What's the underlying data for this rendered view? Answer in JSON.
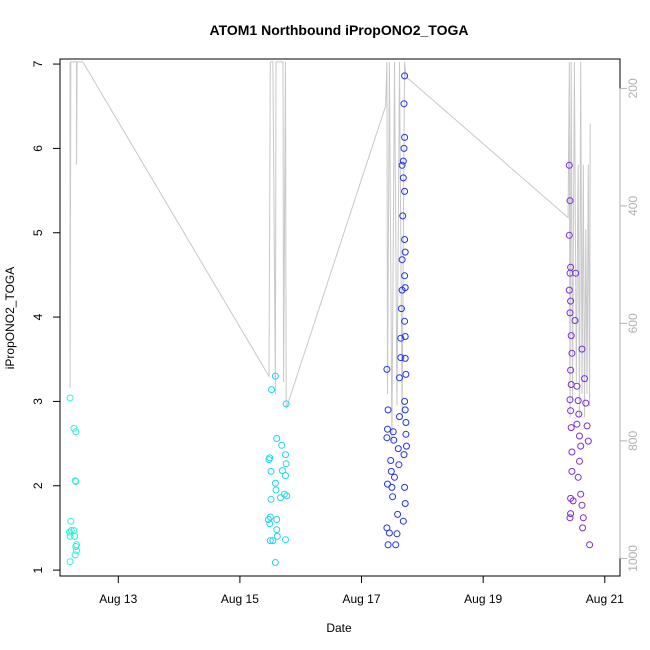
{
  "chart_data": {
    "type": "scatter",
    "title": "ATOM1 Northbound iPropONO2_TOGA",
    "xlabel": "Date",
    "ylabel": "iPropONO2_TOGA",
    "x_ticks": [
      {
        "date": "2016-08-13",
        "label": "Aug 13"
      },
      {
        "date": "2016-08-15",
        "label": "Aug 15"
      },
      {
        "date": "2016-08-17",
        "label": "Aug 17"
      },
      {
        "date": "2016-08-19",
        "label": "Aug 19"
      },
      {
        "date": "2016-08-21",
        "label": "Aug 21"
      }
    ],
    "xlim": [
      "2016-08-12 01:00",
      "2016-08-21 06:00"
    ],
    "ylim": [
      0.93,
      7.06
    ],
    "y_ticks": [
      "1",
      "2",
      "3",
      "4",
      "5",
      "6",
      "7"
    ],
    "y2_ticks": [
      "200",
      "400",
      "600",
      "800",
      "1000"
    ],
    "y2lim": [
      1030,
      150
    ],
    "grid": false,
    "legend": "none",
    "colors": {
      "Aug 12": "#2ff2d6",
      "Aug 15": "#22d6ee",
      "Aug 17": "#2233f0",
      "Aug 20": "#7a2ed6",
      "secondary_line": "#c8c8c8"
    },
    "series": [
      {
        "color_key": "Aug 12",
        "points": [
          [
            "2016-08-12 05:00",
            3.04
          ],
          [
            "2016-08-12 04:45",
            1.45
          ],
          [
            "2016-08-12 05:00",
            1.4
          ],
          [
            "2016-08-12 05:15",
            1.58
          ],
          [
            "2016-08-12 05:00",
            1.1
          ],
          [
            "2016-08-12 05:30",
            1.47
          ],
          [
            "2016-08-12 06:30",
            2.68
          ],
          [
            "2016-08-12 06:45",
            1.4
          ],
          [
            "2016-08-12 06:30",
            1.47
          ],
          [
            "2016-08-12 07:15",
            2.64
          ],
          [
            "2016-08-12 07:00",
            2.06
          ],
          [
            "2016-08-12 07:15",
            2.05
          ],
          [
            "2016-08-12 07:00",
            1.18
          ],
          [
            "2016-08-12 07:30",
            1.23
          ],
          [
            "2016-08-12 07:15",
            1.28
          ],
          [
            "2016-08-12 07:30",
            1.3
          ]
        ]
      },
      {
        "color_key": "Aug 15",
        "points": [
          [
            "2016-08-15 11:30",
            2.31
          ],
          [
            "2016-08-15 11:45",
            2.33
          ],
          [
            "2016-08-15 11:15",
            1.6
          ],
          [
            "2016-08-15 11:45",
            1.55
          ],
          [
            "2016-08-15 12:00",
            1.63
          ],
          [
            "2016-08-15 12:00",
            1.35
          ],
          [
            "2016-08-15 12:15",
            2.17
          ],
          [
            "2016-08-15 12:15",
            1.84
          ],
          [
            "2016-08-15 12:30",
            3.14
          ],
          [
            "2016-08-15 13:00",
            1.35
          ],
          [
            "2016-08-15 14:00",
            3.3
          ],
          [
            "2016-08-15 14:30",
            2.56
          ],
          [
            "2016-08-15 14:00",
            2.03
          ],
          [
            "2016-08-15 14:15",
            1.95
          ],
          [
            "2016-08-15 14:30",
            1.6
          ],
          [
            "2016-08-15 14:30",
            1.48
          ],
          [
            "2016-08-15 14:45",
            1.4
          ],
          [
            "2016-08-15 14:00",
            1.09
          ],
          [
            "2016-08-15 16:00",
            1.86
          ],
          [
            "2016-08-15 16:30",
            2.48
          ],
          [
            "2016-08-15 16:45",
            2.18
          ],
          [
            "2016-08-15 17:30",
            1.9
          ],
          [
            "2016-08-15 18:00",
            2.37
          ],
          [
            "2016-08-15 18:15",
            2.26
          ],
          [
            "2016-08-15 18:00",
            2.12
          ],
          [
            "2016-08-15 18:30",
            1.88
          ],
          [
            "2016-08-15 18:15",
            2.97
          ],
          [
            "2016-08-15 18:00",
            1.36
          ]
        ]
      },
      {
        "color_key": "Aug 17",
        "points": [
          [
            "2016-08-17 10:00",
            3.38
          ],
          [
            "2016-08-17 10:15",
            2.67
          ],
          [
            "2016-08-17 10:00",
            2.57
          ],
          [
            "2016-08-17 10:30",
            2.9
          ],
          [
            "2016-08-17 10:15",
            2.02
          ],
          [
            "2016-08-17 10:00",
            1.5
          ],
          [
            "2016-08-17 10:30",
            1.3
          ],
          [
            "2016-08-17 11:00",
            1.44
          ],
          [
            "2016-08-17 11:30",
            2.3
          ],
          [
            "2016-08-17 11:45",
            2.17
          ],
          [
            "2016-08-17 12:00",
            1.98
          ],
          [
            "2016-08-17 12:15",
            1.87
          ],
          [
            "2016-08-17 12:30",
            2.64
          ],
          [
            "2016-08-17 12:45",
            2.54
          ],
          [
            "2016-08-17 13:00",
            2.1
          ],
          [
            "2016-08-17 13:30",
            1.3
          ],
          [
            "2016-08-17 14:00",
            1.43
          ],
          [
            "2016-08-17 14:15",
            1.66
          ],
          [
            "2016-08-17 14:30",
            2.44
          ],
          [
            "2016-08-17 14:45",
            2.25
          ],
          [
            "2016-08-17 15:00",
            2.82
          ],
          [
            "2016-08-17 15:00",
            3.28
          ],
          [
            "2016-08-17 15:30",
            3.52
          ],
          [
            "2016-08-17 15:30",
            3.75
          ],
          [
            "2016-08-17 15:45",
            4.1
          ],
          [
            "2016-08-17 16:00",
            4.32
          ],
          [
            "2016-08-17 16:00",
            4.68
          ],
          [
            "2016-08-17 16:15",
            5.2
          ],
          [
            "2016-08-17 16:00",
            5.8
          ],
          [
            "2016-08-17 16:30",
            5.65
          ],
          [
            "2016-08-17 16:30",
            5.85
          ],
          [
            "2016-08-17 16:45",
            6.0
          ],
          [
            "2016-08-17 17:00",
            6.13
          ],
          [
            "2016-08-17 16:45",
            6.53
          ],
          [
            "2016-08-17 17:00",
            6.86
          ],
          [
            "2016-08-17 17:00",
            5.49
          ],
          [
            "2016-08-17 17:00",
            4.92
          ],
          [
            "2016-08-17 17:15",
            4.77
          ],
          [
            "2016-08-17 17:00",
            4.49
          ],
          [
            "2016-08-17 17:15",
            4.35
          ],
          [
            "2016-08-17 17:00",
            3.95
          ],
          [
            "2016-08-17 17:15",
            3.77
          ],
          [
            "2016-08-17 17:15",
            3.51
          ],
          [
            "2016-08-17 17:30",
            3.32
          ],
          [
            "2016-08-17 17:00",
            3.0
          ],
          [
            "2016-08-17 17:15",
            2.9
          ],
          [
            "2016-08-17 17:30",
            2.75
          ],
          [
            "2016-08-17 17:30",
            2.61
          ],
          [
            "2016-08-17 17:45",
            2.47
          ],
          [
            "2016-08-17 16:45",
            2.37
          ],
          [
            "2016-08-17 17:00",
            1.98
          ],
          [
            "2016-08-17 17:15",
            1.79
          ],
          [
            "2016-08-17 16:30",
            1.58
          ]
        ]
      },
      {
        "color_key": "Aug 20",
        "points": [
          [
            "2016-08-20 10:00",
            5.8
          ],
          [
            "2016-08-20 10:15",
            5.38
          ],
          [
            "2016-08-20 10:00",
            4.97
          ],
          [
            "2016-08-20 10:30",
            4.59
          ],
          [
            "2016-08-20 10:15",
            4.52
          ],
          [
            "2016-08-20 10:00",
            4.32
          ],
          [
            "2016-08-20 10:30",
            4.19
          ],
          [
            "2016-08-20 10:15",
            4.05
          ],
          [
            "2016-08-20 10:45",
            3.78
          ],
          [
            "2016-08-20 11:00",
            3.57
          ],
          [
            "2016-08-20 10:30",
            3.37
          ],
          [
            "2016-08-20 10:45",
            3.2
          ],
          [
            "2016-08-20 10:15",
            3.02
          ],
          [
            "2016-08-20 10:30",
            2.89
          ],
          [
            "2016-08-20 10:45",
            2.69
          ],
          [
            "2016-08-20 11:00",
            2.4
          ],
          [
            "2016-08-20 11:00",
            2.17
          ],
          [
            "2016-08-20 10:30",
            1.85
          ],
          [
            "2016-08-20 10:30",
            1.67
          ],
          [
            "2016-08-20 10:15",
            1.62
          ],
          [
            "2016-08-20 11:30",
            1.82
          ],
          [
            "2016-08-20 12:30",
            4.52
          ],
          [
            "2016-08-20 12:15",
            3.96
          ],
          [
            "2016-08-20 13:00",
            3.18
          ],
          [
            "2016-08-20 13:30",
            3.01
          ],
          [
            "2016-08-20 13:45",
            2.85
          ],
          [
            "2016-08-20 13:00",
            2.73
          ],
          [
            "2016-08-20 14:00",
            2.59
          ],
          [
            "2016-08-20 14:30",
            2.47
          ],
          [
            "2016-08-20 14:00",
            2.29
          ],
          [
            "2016-08-20 13:30",
            2.1
          ],
          [
            "2016-08-20 14:30",
            1.9
          ],
          [
            "2016-08-20 15:00",
            1.77
          ],
          [
            "2016-08-20 15:30",
            1.62
          ],
          [
            "2016-08-20 15:15",
            1.5
          ],
          [
            "2016-08-20 15:00",
            3.62
          ],
          [
            "2016-08-20 16:00",
            3.27
          ],
          [
            "2016-08-20 16:30",
            2.98
          ],
          [
            "2016-08-20 17:00",
            2.71
          ],
          [
            "2016-08-20 17:30",
            2.53
          ],
          [
            "2016-08-20 18:00",
            1.3
          ]
        ]
      }
    ],
    "secondary_line": {
      "axis": "right",
      "points": [
        [
          "2016-08-12 05:00",
          155
        ],
        [
          "2016-08-12 05:00",
          710
        ],
        [
          "2016-08-12 05:15",
          155
        ],
        [
          "2016-08-12 07:30",
          155
        ],
        [
          "2016-08-12 07:30",
          330
        ],
        [
          "2016-08-12 07:45",
          155
        ],
        [
          "2016-08-12 10:00",
          155
        ],
        [
          "2016-08-15 11:30",
          690
        ],
        [
          "2016-08-15 12:00",
          155
        ],
        [
          "2016-08-15 13:00",
          155
        ],
        [
          "2016-08-15 14:00",
          720
        ],
        [
          "2016-08-15 14:15",
          155
        ],
        [
          "2016-08-15 17:00",
          155
        ],
        [
          "2016-08-15 17:15",
          700
        ],
        [
          "2016-08-15 18:00",
          155
        ],
        [
          "2016-08-15 18:15",
          745
        ],
        [
          "2016-08-17 09:30",
          230
        ],
        [
          "2016-08-17 10:00",
          155
        ],
        [
          "2016-08-17 10:15",
          720
        ],
        [
          "2016-08-17 11:00",
          155
        ],
        [
          "2016-08-17 12:00",
          800
        ],
        [
          "2016-08-17 13:00",
          155
        ],
        [
          "2016-08-17 14:00",
          740
        ],
        [
          "2016-08-17 15:00",
          155
        ],
        [
          "2016-08-17 16:00",
          760
        ],
        [
          "2016-08-17 17:00",
          155
        ],
        [
          "2016-08-17 17:30",
          180
        ],
        [
          "2016-08-20 09:30",
          420
        ],
        [
          "2016-08-20 10:00",
          155
        ],
        [
          "2016-08-20 10:15",
          760
        ],
        [
          "2016-08-20 10:45",
          155
        ],
        [
          "2016-08-20 11:15",
          730
        ],
        [
          "2016-08-20 12:00",
          155
        ],
        [
          "2016-08-20 12:45",
          700
        ],
        [
          "2016-08-20 13:30",
          330
        ],
        [
          "2016-08-20 14:00",
          760
        ],
        [
          "2016-08-20 14:30",
          155
        ],
        [
          "2016-08-20 15:00",
          720
        ],
        [
          "2016-08-20 15:30",
          330
        ],
        [
          "2016-08-20 16:00",
          760
        ],
        [
          "2016-08-20 16:30",
          440
        ],
        [
          "2016-08-20 17:00",
          720
        ],
        [
          "2016-08-20 17:30",
          330
        ],
        [
          "2016-08-20 18:00",
          740
        ],
        [
          "2016-08-20 18:15",
          260
        ]
      ]
    }
  }
}
